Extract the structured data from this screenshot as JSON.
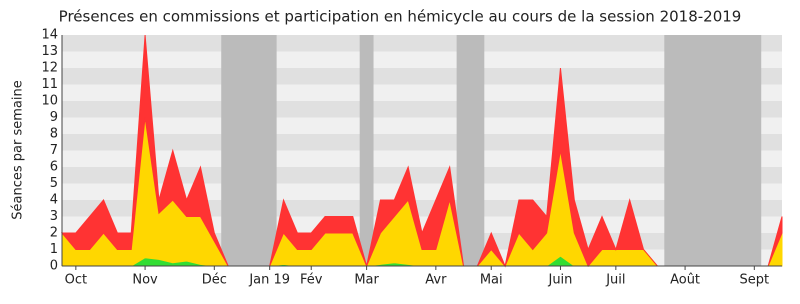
{
  "chart_data": {
    "type": "stacked_area",
    "title": "Présences en commissions et participation en hémicycle au cours de la session 2018-2019",
    "y_label": "Séances par semaine",
    "categories": [
      null,
      "Oct",
      null,
      null,
      null,
      null,
      "Nov",
      null,
      null,
      null,
      null,
      "Déc",
      null,
      null,
      null,
      "Jan 19",
      null,
      null,
      "Fév",
      null,
      null,
      null,
      "Mar",
      null,
      null,
      null,
      null,
      "Avr",
      null,
      null,
      null,
      "Mai",
      null,
      null,
      null,
      null,
      "Juin",
      null,
      null,
      null,
      "Juil",
      null,
      null,
      null,
      null,
      "Août",
      null,
      null,
      null,
      null,
      "Sept",
      null,
      null
    ],
    "xlim": [
      0,
      52
    ],
    "ylim": [
      0,
      14
    ],
    "yticks": [
      0,
      1,
      2,
      3,
      4,
      5,
      6,
      7,
      8,
      9,
      10,
      11,
      12,
      13,
      14
    ],
    "shaded_ranges": [
      [
        11.5,
        15.5
      ],
      [
        21.5,
        22.5
      ],
      [
        28.5,
        30.5
      ],
      [
        43.5,
        50.5
      ]
    ],
    "shade_color": "#bbbbbb",
    "stripe_colors": [
      "#f0f0f0",
      "#e0e0e0"
    ],
    "series": [
      {
        "color": "#33dd33",
        "values": [
          0,
          0,
          0,
          0,
          0,
          0,
          0.5,
          0.4,
          0.2,
          0.3,
          0.1,
          0,
          0,
          0,
          0,
          0,
          0.1,
          0,
          0,
          0,
          0,
          0,
          0,
          0.1,
          0.2,
          0.1,
          0,
          0,
          0,
          0,
          0,
          0,
          0,
          0,
          0,
          0,
          0.6,
          0,
          0,
          0,
          0,
          0,
          0,
          0,
          0,
          0,
          0,
          0,
          0,
          0,
          0,
          0,
          0
        ]
      },
      {
        "color": "#ffd700",
        "values": [
          2,
          1,
          1,
          2,
          1,
          1,
          8.5,
          2.8,
          3.8,
          2.7,
          2.9,
          1.5,
          0,
          0,
          0,
          0,
          1.9,
          1,
          1,
          2,
          2,
          2,
          0,
          1.9,
          2.8,
          3.9,
          1,
          1,
          4,
          0,
          0,
          1,
          0,
          2,
          1,
          2,
          6.4,
          2,
          0,
          1,
          1,
          1,
          1,
          0,
          0,
          0,
          0,
          0,
          0,
          0,
          0,
          0,
          2
        ]
      },
      {
        "color": "#ff3333",
        "values": [
          0,
          1,
          2,
          2,
          1,
          1,
          5,
          0.8,
          3,
          1,
          3,
          0.5,
          0,
          0,
          0,
          0,
          2,
          1,
          1,
          1,
          1,
          1,
          0,
          2,
          1,
          2,
          1,
          3,
          2,
          0,
          0,
          1,
          0,
          2,
          3,
          1,
          5,
          2,
          1,
          2,
          0,
          3,
          0,
          0,
          0,
          0,
          0,
          0,
          0,
          0,
          0,
          0,
          1
        ]
      }
    ]
  }
}
